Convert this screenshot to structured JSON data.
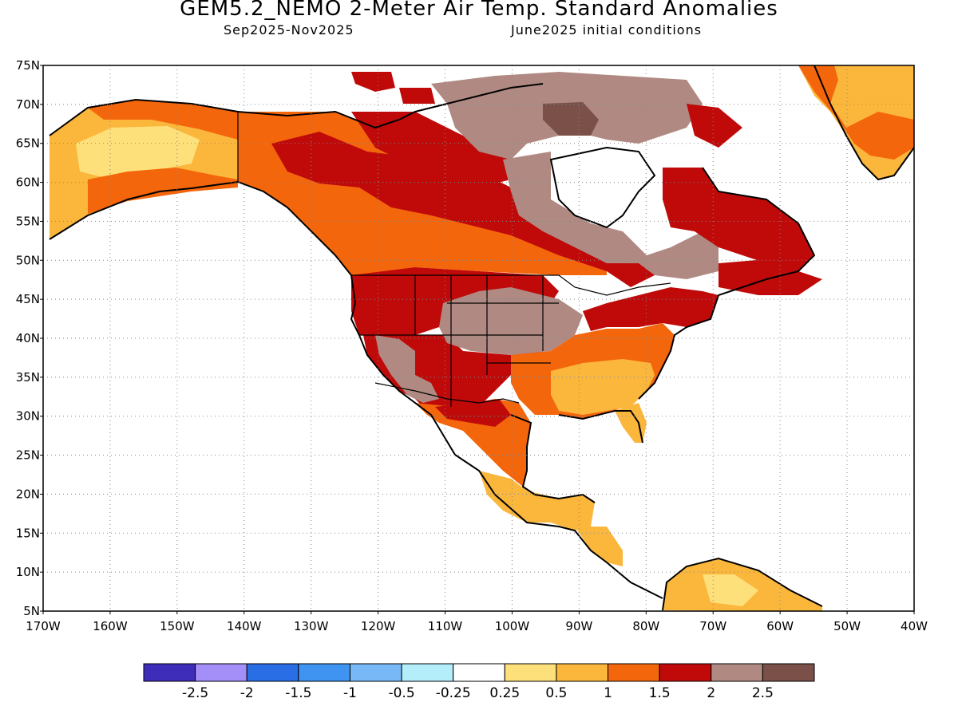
{
  "title": "GEM5.2_NEMO 2-Meter Air Temp. Standard Anomalies",
  "period": "Sep2025-Nov2025",
  "initial_conditions": "June2025 initial conditions",
  "lat_labels": [
    "75N",
    "70N",
    "65N",
    "60N",
    "55N",
    "50N",
    "45N",
    "40N",
    "35N",
    "30N",
    "25N",
    "20N",
    "15N",
    "10N",
    "5N"
  ],
  "lon_labels": [
    "170W",
    "160W",
    "150W",
    "140W",
    "130W",
    "120W",
    "110W",
    "100W",
    "90W",
    "80W",
    "70W",
    "60W",
    "50W",
    "40W"
  ],
  "legend": {
    "colors": [
      "#3e2db8",
      "#a48ef8",
      "#2a6ee6",
      "#3e94f0",
      "#78b8f6",
      "#b4eefa",
      "#ffffff",
      "#fde07a",
      "#fbb63c",
      "#f4660c",
      "#c00a0a",
      "#b08a82",
      "#7a5048"
    ],
    "labels": [
      "-2.5",
      "-2",
      "-1.5",
      "-1",
      "-0.5",
      "-0.25",
      "0.25",
      "0.5",
      "1",
      "1.5",
      "2",
      "2.5"
    ]
  },
  "regions": [
    {
      "name": "alaska-anomaly",
      "category": "1-1.5"
    },
    {
      "name": "canada-west-anomaly",
      "category": "1.5-2"
    },
    {
      "name": "canada-central-anomaly",
      "category": "2-2.5"
    },
    {
      "name": "hudson-bay-anomaly",
      "category": ">2.5"
    },
    {
      "name": "us-central-anomaly",
      "category": "2-2.5"
    },
    {
      "name": "us-southeast-anomaly",
      "category": "0.5-1"
    },
    {
      "name": "mexico-anomaly",
      "category": "1-1.5"
    },
    {
      "name": "greenland-anomaly",
      "category": "0.5-1"
    },
    {
      "name": "south-america-anomaly",
      "category": "0.25-0.5"
    }
  ]
}
